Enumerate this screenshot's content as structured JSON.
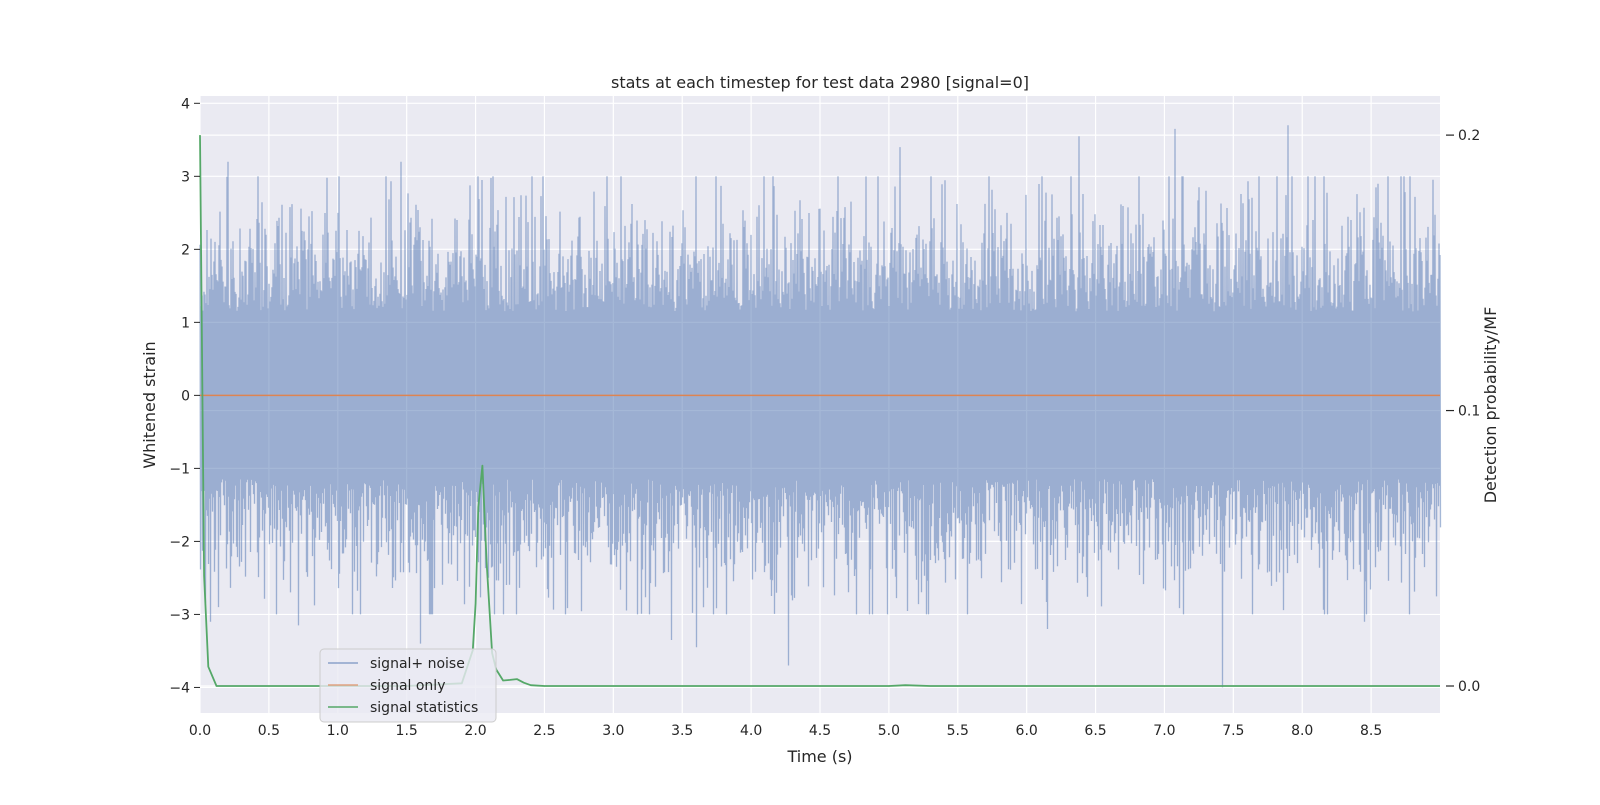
{
  "chart_data": {
    "type": "line",
    "title": "stats at each timestep for test data 2980 [signal=0]",
    "xlabel": "Time (s)",
    "ylabel_left": "Whitened strain",
    "ylabel_right": "Detection probability/MF",
    "xlim": [
      0.0,
      9.0
    ],
    "ylim_left": [
      -4.35,
      4.1
    ],
    "ylim_right": [
      -0.0098,
      0.2142
    ],
    "x_ticks": [
      0.0,
      0.5,
      1.0,
      1.5,
      2.0,
      2.5,
      3.0,
      3.5,
      4.0,
      4.5,
      5.0,
      5.5,
      6.0,
      6.5,
      7.0,
      7.5,
      8.0,
      8.5
    ],
    "x_tick_labels": [
      "0.0",
      "0.5",
      "1.0",
      "1.5",
      "2.0",
      "2.5",
      "3.0",
      "3.5",
      "4.0",
      "4.5",
      "5.0",
      "5.5",
      "6.0",
      "6.5",
      "7.0",
      "7.5",
      "8.0",
      "8.5"
    ],
    "y_left_ticks": [
      4,
      3,
      2,
      1,
      0,
      -1,
      -2,
      -3,
      -4
    ],
    "y_left_tick_labels": [
      "4",
      "3",
      "2",
      "1",
      "0",
      "−1",
      "−2",
      "−3",
      "−4"
    ],
    "y_right_ticks": [
      0.2,
      0.1,
      0.0
    ],
    "y_right_tick_labels": [
      "0.2",
      "0.1",
      "0.0"
    ],
    "grid": true,
    "legend_position": "lower-left",
    "legend": [
      "signal+ noise",
      "signal only",
      "signal statistics"
    ],
    "colors": {
      "plot_background": "#eaeaf2",
      "grid": "#ffffff",
      "signal_noise": "#4c72b0",
      "signal_only": "#dd8452",
      "signal_statistics": "#55a868"
    },
    "series": [
      {
        "name": "signal+ noise",
        "axis": "left",
        "description": "dense whitened strain noise, approx. range -4.0 to 3.7, mostly within ±2",
        "sample_rate_hz": 2048,
        "notable_peaks": [
          {
            "x": 0.2,
            "y": 3.2
          },
          {
            "x": 1.46,
            "y": 3.2
          },
          {
            "x": 5.08,
            "y": 3.4
          },
          {
            "x": 6.38,
            "y": 3.55
          },
          {
            "x": 7.08,
            "y": 3.65
          },
          {
            "x": 7.9,
            "y": 3.7
          }
        ],
        "notable_troughs": [
          {
            "x": 0.07,
            "y": -3.1
          },
          {
            "x": 0.71,
            "y": -3.15
          },
          {
            "x": 1.6,
            "y": -3.4
          },
          {
            "x": 3.42,
            "y": -3.35
          },
          {
            "x": 3.6,
            "y": -3.45
          },
          {
            "x": 4.27,
            "y": -3.7
          },
          {
            "x": 6.15,
            "y": -3.2
          },
          {
            "x": 7.42,
            "y": -4.0
          },
          {
            "x": 8.45,
            "y": -3.1
          }
        ]
      },
      {
        "name": "signal only",
        "axis": "left",
        "x": [
          0.0,
          9.0
        ],
        "y": [
          0.0,
          0.0
        ]
      },
      {
        "name": "signal statistics",
        "axis": "right",
        "x": [
          0.0,
          0.03,
          0.06,
          0.12,
          0.5,
          1.0,
          1.5,
          1.9,
          1.98,
          2.0,
          2.02,
          2.05,
          2.08,
          2.12,
          2.15,
          2.2,
          2.25,
          2.3,
          2.35,
          2.4,
          2.5,
          3.0,
          4.0,
          5.0,
          5.12,
          5.3,
          6.0,
          7.0,
          8.0,
          9.0
        ],
        "y": [
          0.2,
          0.04,
          0.007,
          0.0,
          0.0,
          0.0,
          0.0,
          0.001,
          0.013,
          0.03,
          0.065,
          0.08,
          0.045,
          0.012,
          0.006,
          0.002,
          0.0022,
          0.0025,
          0.0012,
          0.0003,
          0.0,
          0.0,
          0.0,
          0.0,
          0.0003,
          0.0,
          0.0,
          0.0,
          0.0,
          0.0
        ]
      }
    ]
  }
}
